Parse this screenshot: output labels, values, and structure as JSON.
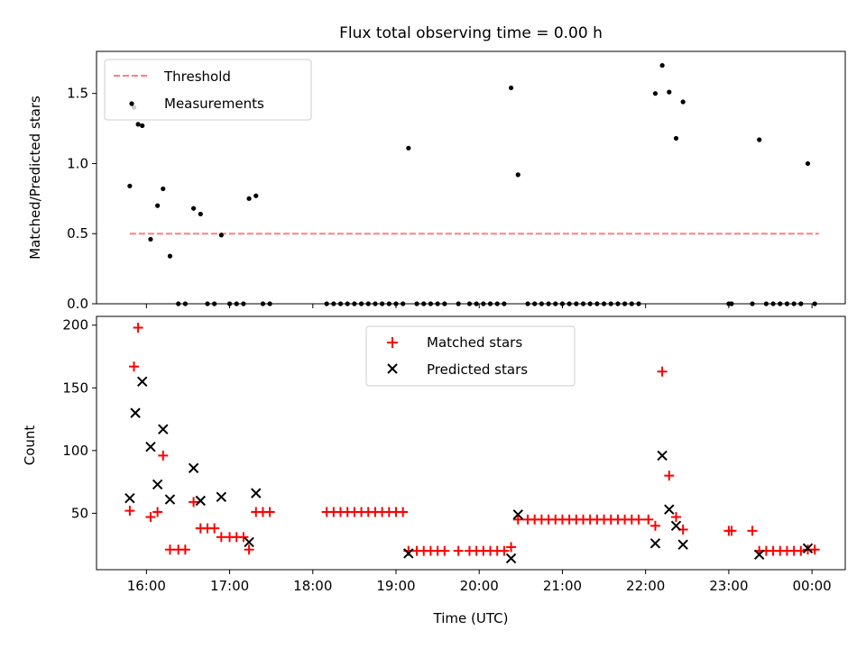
{
  "chart_data": [
    {
      "type": "scatter",
      "title": "Flux total observing time = 0.00 h",
      "xlabel": "",
      "ylabel": "Matched/Predicted stars",
      "ylim": [
        0,
        1.8
      ],
      "yticks": [
        "0.0",
        "0.5",
        "1.0",
        "1.5"
      ],
      "xlim": [
        "15:24",
        "00:24"
      ],
      "legend": {
        "placement": "top-left",
        "entries": [
          "Threshold",
          "Measurements"
        ]
      },
      "series": [
        {
          "name": "Threshold",
          "style": "dashed-line",
          "color": "#ff7f7f",
          "x": [
            "15:48",
            "00:05"
          ],
          "y": [
            0.5,
            0.5
          ]
        },
        {
          "name": "Measurements",
          "style": "dot",
          "color": "#000000",
          "points": [
            [
              "15:48",
              0.84
            ],
            [
              "15:51",
              1.4
            ],
            [
              "15:54",
              1.28
            ],
            [
              "15:57",
              1.27
            ],
            [
              "16:03",
              0.46
            ],
            [
              "16:08",
              0.7
            ],
            [
              "16:12",
              0.82
            ],
            [
              "16:17",
              0.34
            ],
            [
              "16:23",
              0.0
            ],
            [
              "16:28",
              0.0
            ],
            [
              "16:34",
              0.68
            ],
            [
              "16:39",
              0.64
            ],
            [
              "16:44",
              0.0
            ],
            [
              "16:49",
              0.0
            ],
            [
              "16:54",
              0.49
            ],
            [
              "17:00",
              0.0
            ],
            [
              "17:05",
              0.0
            ],
            [
              "17:10",
              0.0
            ],
            [
              "17:14",
              0.75
            ],
            [
              "17:19",
              0.77
            ],
            [
              "17:24",
              0.0
            ],
            [
              "17:29",
              0.0
            ],
            [
              "18:10",
              0.0
            ],
            [
              "18:15",
              0.0
            ],
            [
              "18:20",
              0.0
            ],
            [
              "18:25",
              0.0
            ],
            [
              "18:30",
              0.0
            ],
            [
              "18:35",
              0.0
            ],
            [
              "18:40",
              0.0
            ],
            [
              "18:45",
              0.0
            ],
            [
              "18:50",
              0.0
            ],
            [
              "18:55",
              0.0
            ],
            [
              "19:00",
              0.0
            ],
            [
              "19:05",
              0.0
            ],
            [
              "19:09",
              1.11
            ],
            [
              "19:15",
              0.0
            ],
            [
              "19:20",
              0.0
            ],
            [
              "19:25",
              0.0
            ],
            [
              "19:30",
              0.0
            ],
            [
              "19:35",
              0.0
            ],
            [
              "19:45",
              0.0
            ],
            [
              "19:53",
              0.0
            ],
            [
              "19:58",
              0.0
            ],
            [
              "20:03",
              0.0
            ],
            [
              "20:08",
              0.0
            ],
            [
              "20:13",
              0.0
            ],
            [
              "20:18",
              0.0
            ],
            [
              "20:23",
              1.54
            ],
            [
              "20:28",
              0.92
            ],
            [
              "20:35",
              0.0
            ],
            [
              "20:40",
              0.0
            ],
            [
              "20:45",
              0.0
            ],
            [
              "20:50",
              0.0
            ],
            [
              "20:55",
              0.0
            ],
            [
              "21:00",
              0.0
            ],
            [
              "21:05",
              0.0
            ],
            [
              "21:10",
              0.0
            ],
            [
              "21:15",
              0.0
            ],
            [
              "21:20",
              0.0
            ],
            [
              "21:25",
              0.0
            ],
            [
              "21:30",
              0.0
            ],
            [
              "21:35",
              0.0
            ],
            [
              "21:40",
              0.0
            ],
            [
              "21:45",
              0.0
            ],
            [
              "21:50",
              0.0
            ],
            [
              "21:55",
              0.0
            ],
            [
              "22:07",
              1.5
            ],
            [
              "22:12",
              1.7
            ],
            [
              "22:17",
              1.51
            ],
            [
              "22:22",
              1.18
            ],
            [
              "22:27",
              1.44
            ],
            [
              "23:00",
              0.0
            ],
            [
              "23:02",
              0.0
            ],
            [
              "23:17",
              0.0
            ],
            [
              "23:22",
              1.17
            ],
            [
              "23:27",
              0.0
            ],
            [
              "23:32",
              0.0
            ],
            [
              "23:37",
              0.0
            ],
            [
              "23:42",
              0.0
            ],
            [
              "23:47",
              0.0
            ],
            [
              "23:52",
              0.0
            ],
            [
              "23:57",
              1.0
            ],
            [
              "00:02",
              0.0
            ]
          ]
        }
      ]
    },
    {
      "type": "scatter",
      "title": "",
      "xlabel": "Time (UTC)",
      "ylabel": "Count",
      "ylim": [
        5,
        207
      ],
      "yticks": [
        "50",
        "100",
        "150",
        "200"
      ],
      "xlim": [
        "15:24",
        "00:24"
      ],
      "xticks": [
        "16:00",
        "17:00",
        "18:00",
        "19:00",
        "20:00",
        "21:00",
        "22:00",
        "23:00",
        "00:00"
      ],
      "legend": {
        "placement": "top-center",
        "entries": [
          "Matched stars",
          "Predicted stars"
        ]
      },
      "series": [
        {
          "name": "Matched stars",
          "marker": "+",
          "color": "#ff0000",
          "points": [
            [
              "15:48",
              52
            ],
            [
              "15:51",
              167
            ],
            [
              "15:54",
              198
            ],
            [
              "16:03",
              47
            ],
            [
              "16:08",
              51
            ],
            [
              "16:12",
              96
            ],
            [
              "16:17",
              21
            ],
            [
              "16:23",
              21
            ],
            [
              "16:28",
              21
            ],
            [
              "16:34",
              59
            ],
            [
              "16:39",
              38
            ],
            [
              "16:44",
              38
            ],
            [
              "16:49",
              38
            ],
            [
              "16:54",
              31
            ],
            [
              "17:00",
              31
            ],
            [
              "17:05",
              31
            ],
            [
              "17:10",
              31
            ],
            [
              "17:14",
              21
            ],
            [
              "17:19",
              51
            ],
            [
              "17:24",
              51
            ],
            [
              "17:29",
              51
            ],
            [
              "18:10",
              51
            ],
            [
              "18:15",
              51
            ],
            [
              "18:20",
              51
            ],
            [
              "18:25",
              51
            ],
            [
              "18:30",
              51
            ],
            [
              "18:35",
              51
            ],
            [
              "18:40",
              51
            ],
            [
              "18:45",
              51
            ],
            [
              "18:50",
              51
            ],
            [
              "18:55",
              51
            ],
            [
              "19:00",
              51
            ],
            [
              "19:05",
              51
            ],
            [
              "19:09",
              20
            ],
            [
              "19:15",
              20
            ],
            [
              "19:20",
              20
            ],
            [
              "19:25",
              20
            ],
            [
              "19:30",
              20
            ],
            [
              "19:35",
              20
            ],
            [
              "19:45",
              20
            ],
            [
              "19:53",
              20
            ],
            [
              "19:58",
              20
            ],
            [
              "20:03",
              20
            ],
            [
              "20:08",
              20
            ],
            [
              "20:13",
              20
            ],
            [
              "20:18",
              20
            ],
            [
              "20:23",
              23
            ],
            [
              "20:28",
              45
            ],
            [
              "20:35",
              45
            ],
            [
              "20:40",
              45
            ],
            [
              "20:45",
              45
            ],
            [
              "20:50",
              45
            ],
            [
              "20:55",
              45
            ],
            [
              "21:00",
              45
            ],
            [
              "21:05",
              45
            ],
            [
              "21:10",
              45
            ],
            [
              "21:15",
              45
            ],
            [
              "21:20",
              45
            ],
            [
              "21:25",
              45
            ],
            [
              "21:30",
              45
            ],
            [
              "21:35",
              45
            ],
            [
              "21:40",
              45
            ],
            [
              "21:45",
              45
            ],
            [
              "21:50",
              45
            ],
            [
              "21:55",
              45
            ],
            [
              "22:02",
              45
            ],
            [
              "22:07",
              40
            ],
            [
              "22:12",
              163
            ],
            [
              "22:17",
              80
            ],
            [
              "22:22",
              47
            ],
            [
              "22:27",
              37
            ],
            [
              "23:00",
              36
            ],
            [
              "23:02",
              36
            ],
            [
              "23:17",
              36
            ],
            [
              "23:22",
              20
            ],
            [
              "23:27",
              20
            ],
            [
              "23:32",
              20
            ],
            [
              "23:37",
              20
            ],
            [
              "23:42",
              20
            ],
            [
              "23:47",
              20
            ],
            [
              "23:52",
              20
            ],
            [
              "23:57",
              21
            ],
            [
              "00:02",
              21
            ]
          ]
        },
        {
          "name": "Predicted stars",
          "marker": "x",
          "color": "#000000",
          "points": [
            [
              "15:48",
              62
            ],
            [
              "15:52",
              130
            ],
            [
              "15:57",
              155
            ],
            [
              "16:03",
              103
            ],
            [
              "16:08",
              73
            ],
            [
              "16:12",
              117
            ],
            [
              "16:17",
              61
            ],
            [
              "16:34",
              86
            ],
            [
              "16:39",
              60
            ],
            [
              "16:54",
              63
            ],
            [
              "17:14",
              27
            ],
            [
              "17:19",
              66
            ],
            [
              "19:09",
              18
            ],
            [
              "20:23",
              14
            ],
            [
              "20:28",
              49
            ],
            [
              "22:07",
              26
            ],
            [
              "22:12",
              96
            ],
            [
              "22:17",
              53
            ],
            [
              "22:22",
              40
            ],
            [
              "22:27",
              25
            ],
            [
              "23:22",
              17
            ],
            [
              "23:57",
              22
            ]
          ]
        }
      ]
    }
  ]
}
